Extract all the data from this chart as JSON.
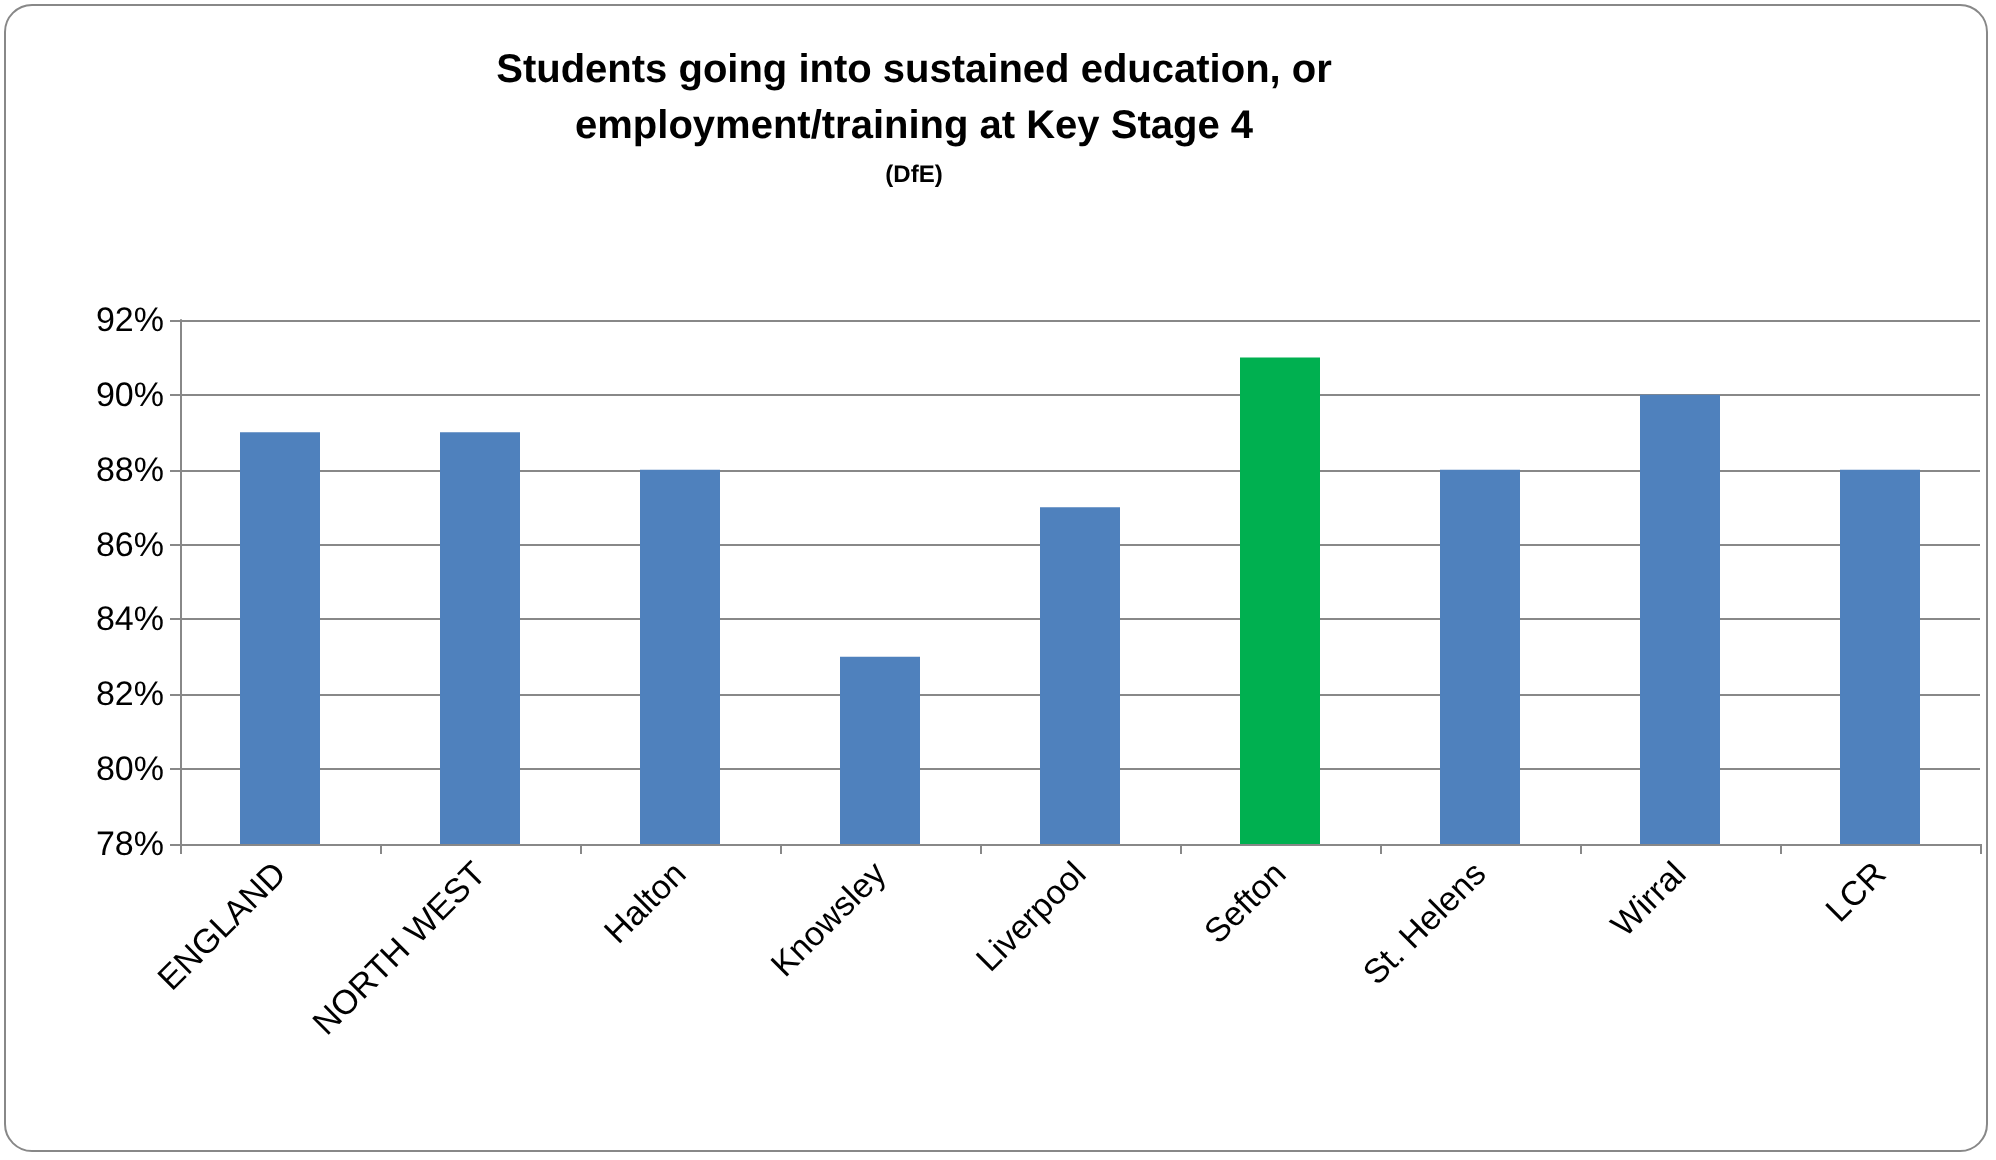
{
  "chart_data": {
    "type": "bar",
    "title": "Students going into sustained education, or\nemployment/training at Key Stage 4",
    "subtitle": "(DfE)",
    "categories": [
      "ENGLAND",
      "NORTH WEST",
      "Halton",
      "Knowsley",
      "Liverpool",
      "Sefton",
      "St. Helens",
      "Wirral",
      "LCR"
    ],
    "values": [
      89,
      89,
      88,
      83,
      87,
      91,
      88,
      90,
      88
    ],
    "colors": [
      "#4f81bd",
      "#4f81bd",
      "#4f81bd",
      "#4f81bd",
      "#4f81bd",
      "#00b050",
      "#4f81bd",
      "#4f81bd",
      "#4f81bd"
    ],
    "ylim": [
      78,
      92
    ],
    "yticks": [
      {
        "value": 78,
        "label": "78%"
      },
      {
        "value": 80,
        "label": "80%"
      },
      {
        "value": 82,
        "label": "82%"
      },
      {
        "value": 84,
        "label": "84%"
      },
      {
        "value": 86,
        "label": "86%"
      },
      {
        "value": 88,
        "label": "88%"
      },
      {
        "value": 90,
        "label": "90%"
      },
      {
        "value": 92,
        "label": "92%"
      }
    ],
    "grid": "y"
  }
}
